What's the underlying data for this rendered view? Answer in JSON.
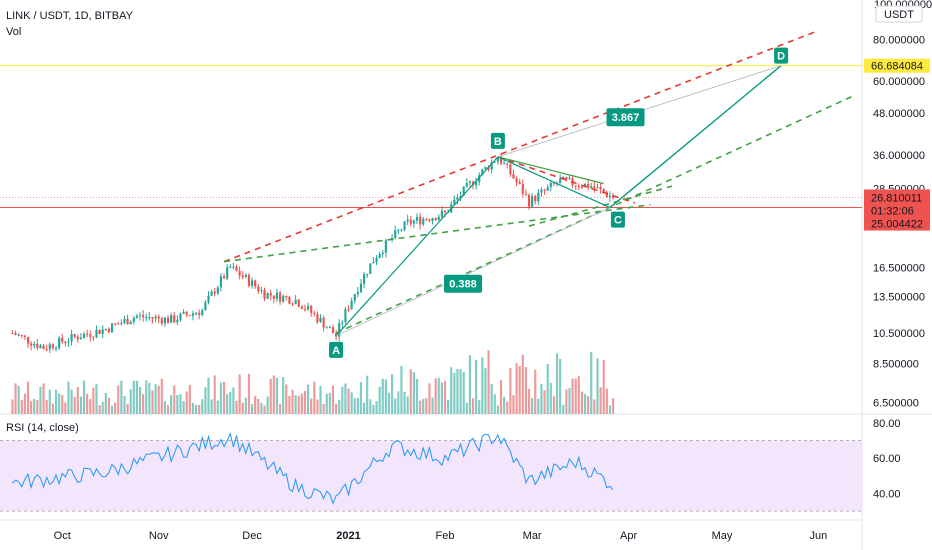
{
  "header": {
    "symbol_title": "LINK / USDT, 1D, BITBAY",
    "volume_label": "Vol",
    "rsi_label": "RSI (14, close)"
  },
  "price_axis": {
    "currency": "USDT",
    "scale": "log",
    "ticks": [
      "80.000000",
      "60.000000",
      "48.000000",
      "36.000000",
      "28.500000",
      "16.500000",
      "13.500000",
      "10.500000",
      "8.500000",
      "6.500000"
    ],
    "tick_values": [
      80,
      60,
      48,
      36,
      28.5,
      16.5,
      13.5,
      10.5,
      8.5,
      6.5
    ],
    "top_label": "100.000000",
    "ylim": [
      6,
      105
    ]
  },
  "rsi_axis": {
    "ticks": [
      "80.00",
      "60.00",
      "40.00"
    ],
    "tick_values": [
      80,
      60,
      40
    ],
    "ylim": [
      25,
      85
    ],
    "band": [
      30,
      70
    ]
  },
  "time_axis": {
    "labels": [
      "Oct",
      "Nov",
      "Dec",
      "2021",
      "Feb",
      "Mar",
      "Apr",
      "May",
      "Jun"
    ]
  },
  "price_badges": {
    "yellow_line": {
      "value": 66.684084,
      "label": "66.684084",
      "color": "#ffeb3b"
    },
    "last_price": {
      "value": 26.810011,
      "label": "26.810011",
      "color": "#ef5350"
    },
    "countdown": {
      "label": "01:32:06"
    },
    "red_line": {
      "value": 25.004422,
      "label": "25.004422",
      "color": "#ef5350"
    }
  },
  "annotations": {
    "points": [
      {
        "letter": "A",
        "date_index": 0,
        "value": 10.3
      },
      {
        "letter": "B",
        "date_index": 1,
        "value": 35.5
      },
      {
        "letter": "C",
        "date_index": 2,
        "value": 25.0
      },
      {
        "letter": "D",
        "date_index": 3,
        "value": 66.7
      }
    ],
    "ratio_ab": "0.388",
    "ratio_bc": "3.867",
    "accent": "#089981"
  },
  "colors": {
    "up": "#26a69a",
    "down": "#ef5350",
    "up_vol": "#80cbc4",
    "down_vol": "#ef9a9a",
    "rsi_line": "#2196f3",
    "rsi_band": "#f3e5fc",
    "trend_red": "#e53935",
    "trend_green": "#43a047"
  },
  "chart_data": {
    "type": "candlestick",
    "symbol": "LINK / USDT",
    "interval": "1D",
    "exchange": "BITBAY",
    "x_range": [
      "2020-09-11",
      "2021-06-15"
    ],
    "closes_sampled": [
      {
        "date": "2020-09-15",
        "close": 10.5
      },
      {
        "date": "2020-09-25",
        "close": 9.5
      },
      {
        "date": "2020-10-05",
        "close": 10.2
      },
      {
        "date": "2020-10-15",
        "close": 10.8
      },
      {
        "date": "2020-10-25",
        "close": 11.8
      },
      {
        "date": "2020-11-05",
        "close": 11.5
      },
      {
        "date": "2020-11-15",
        "close": 12.3
      },
      {
        "date": "2020-11-24",
        "close": 16.5
      },
      {
        "date": "2020-12-05",
        "close": 13.8
      },
      {
        "date": "2020-12-15",
        "close": 13.2
      },
      {
        "date": "2020-12-25",
        "close": 11.0
      },
      {
        "date": "2020-12-28",
        "close": 10.3
      },
      {
        "date": "2021-01-10",
        "close": 18.0
      },
      {
        "date": "2021-01-20",
        "close": 22.5
      },
      {
        "date": "2021-02-01",
        "close": 24.0
      },
      {
        "date": "2021-02-10",
        "close": 30.0
      },
      {
        "date": "2021-02-18",
        "close": 35.5
      },
      {
        "date": "2021-02-28",
        "close": 26.0
      },
      {
        "date": "2021-03-10",
        "close": 30.0
      },
      {
        "date": "2021-03-20",
        "close": 29.0
      },
      {
        "date": "2021-03-27",
        "close": 26.81
      }
    ],
    "last_close": 26.810011,
    "rsi_sampled": [
      {
        "date": "2020-09-15",
        "rsi": 46
      },
      {
        "date": "2020-10-15",
        "rsi": 52
      },
      {
        "date": "2020-11-24",
        "rsi": 72
      },
      {
        "date": "2020-12-15",
        "rsi": 44
      },
      {
        "date": "2020-12-28",
        "rsi": 36
      },
      {
        "date": "2021-01-15",
        "rsi": 67
      },
      {
        "date": "2021-02-01",
        "rsi": 60
      },
      {
        "date": "2021-02-18",
        "rsi": 73
      },
      {
        "date": "2021-02-28",
        "rsi": 47
      },
      {
        "date": "2021-03-15",
        "rsi": 58
      },
      {
        "date": "2021-03-27",
        "rsi": 45
      }
    ],
    "pattern_dates": [
      "2020-12-28",
      "2021-02-18",
      "2021-03-26",
      "2021-05-20"
    ]
  }
}
